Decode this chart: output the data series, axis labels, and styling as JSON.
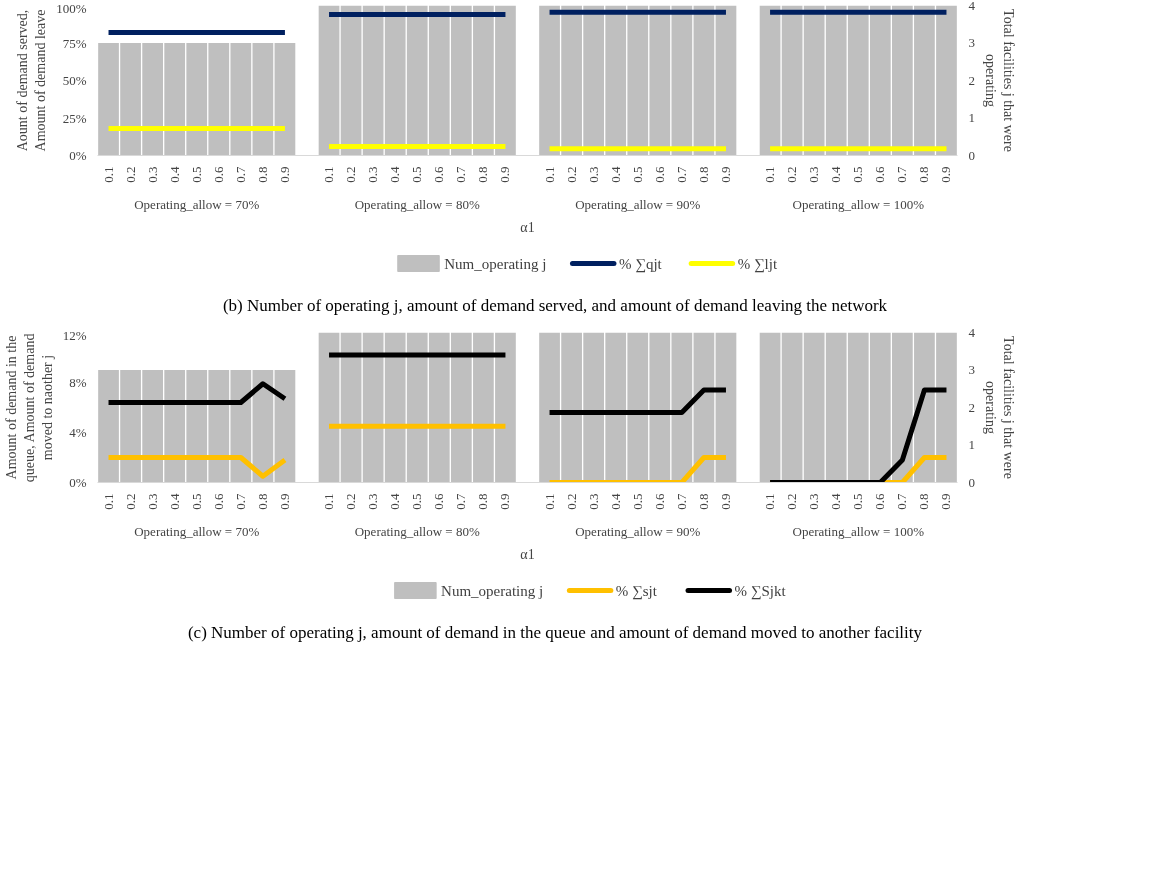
{
  "chart_data": [
    {
      "type": "bar",
      "title": "(b) Number of operating j, amount of demand served, and amount of demand leaving the network",
      "xlabel": "α1",
      "ylabel": "Aount of demand served,\nAmount of demand leave",
      "y2label": "Total facilities j that were\noperating",
      "categories": [
        "0.1",
        "0.2",
        "0.3",
        "0.4",
        "0.5",
        "0.6",
        "0.7",
        "0.8",
        "0.9",
        null,
        "0.1",
        "0.2",
        "0.3",
        "0.4",
        "0.5",
        "0.6",
        "0.7",
        "0.8",
        "0.9",
        null,
        "0.1",
        "0.2",
        "0.3",
        "0.4",
        "0.5",
        "0.6",
        "0.7",
        "0.8",
        "0.9",
        null,
        "0.1",
        "0.2",
        "0.3",
        "0.4",
        "0.5",
        "0.6",
        "0.7",
        "0.8",
        "0.9"
      ],
      "annotations": [
        "Operating_allow = 70%",
        "Operating_allow = 80%",
        "Operating_allow = 90%",
        "Operating_allow = 100%"
      ],
      "ylim": [
        0,
        100
      ],
      "yticks": [
        {
          "value": 0,
          "label": "0%"
        },
        {
          "value": 25,
          "label": "25%"
        },
        {
          "value": 50,
          "label": "50%"
        },
        {
          "value": 75,
          "label": "75%"
        },
        {
          "value": 100,
          "label": "100%"
        }
      ],
      "y2lim": [
        0,
        4
      ],
      "y2ticks": [
        0,
        1,
        2,
        3,
        4
      ],
      "grid": false,
      "legend": "bottom",
      "series": [
        {
          "name": "Num_operating j",
          "axis": "y2",
          "color": "#bfbfbf",
          "values": [
            3,
            3,
            3,
            3,
            3,
            3,
            3,
            3,
            3,
            null,
            4,
            4,
            4,
            4,
            4,
            4,
            4,
            4,
            4,
            null,
            4,
            4,
            4,
            4,
            4,
            4,
            4,
            4,
            4,
            null,
            4,
            4,
            4,
            4,
            4,
            4,
            4,
            4,
            4
          ]
        },
        {
          "name": "% ∑qjt",
          "type": "line",
          "color": "#002060",
          "values": [
            82,
            82,
            82,
            82,
            82,
            82,
            82,
            82,
            82,
            null,
            94,
            94,
            94,
            94,
            94,
            94,
            94,
            94,
            94,
            null,
            95.5,
            95.5,
            95.5,
            95.5,
            95.5,
            95.5,
            95.5,
            95.5,
            95.5,
            null,
            95.5,
            95.5,
            95.5,
            95.5,
            95.5,
            95.5,
            95.5,
            95.5,
            95.5
          ]
        },
        {
          "name": "% ∑ljt",
          "type": "line",
          "color": "#ffff00",
          "values": [
            18,
            18,
            18,
            18,
            18,
            18,
            18,
            18,
            18,
            null,
            6,
            6,
            6,
            6,
            6,
            6,
            6,
            6,
            6,
            null,
            4.5,
            4.5,
            4.5,
            4.5,
            4.5,
            4.5,
            4.5,
            4.5,
            4.5,
            null,
            4.5,
            4.5,
            4.5,
            4.5,
            4.5,
            4.5,
            4.5,
            4.5,
            4.5
          ]
        }
      ]
    },
    {
      "type": "bar",
      "title": "(c) Number of operating j, amount of demand in the queue and amount of demand moved to another facility",
      "xlabel": "α1",
      "ylabel": "Amount of demand in the\nqueue, Amount of demand\nmoved to naother j",
      "y2label": "Total facilities j that were\noperating",
      "categories": [
        "0.1",
        "0.2",
        "0.3",
        "0.4",
        "0.5",
        "0.6",
        "0.7",
        "0.8",
        "0.9",
        null,
        "0.1",
        "0.2",
        "0.3",
        "0.4",
        "0.5",
        "0.6",
        "0.7",
        "0.8",
        "0.9",
        null,
        "0.1",
        "0.2",
        "0.3",
        "0.4",
        "0.5",
        "0.6",
        "0.7",
        "0.8",
        "0.9",
        null,
        "0.1",
        "0.2",
        "0.3",
        "0.4",
        "0.5",
        "0.6",
        "0.7",
        "0.8",
        "0.9"
      ],
      "annotations": [
        "Operating_allow = 70%",
        "Operating_allow = 80%",
        "Operating_allow = 90%",
        "Operating_allow = 100%"
      ],
      "ylim": [
        0,
        12
      ],
      "yticks": [
        {
          "value": 0,
          "label": "0%"
        },
        {
          "value": 4,
          "label": "4%"
        },
        {
          "value": 8,
          "label": "8%"
        },
        {
          "value": 12,
          "label": "12%"
        }
      ],
      "y2lim": [
        0,
        4
      ],
      "y2ticks": [
        0,
        1,
        2,
        3,
        4
      ],
      "grid": false,
      "legend": "bottom",
      "series": [
        {
          "name": "Num_operating j",
          "axis": "y2",
          "color": "#bfbfbf",
          "values": [
            3,
            3,
            3,
            3,
            3,
            3,
            3,
            3,
            3,
            null,
            4,
            4,
            4,
            4,
            4,
            4,
            4,
            4,
            4,
            null,
            4,
            4,
            4,
            4,
            4,
            4,
            4,
            4,
            4,
            null,
            4,
            4,
            4,
            4,
            4,
            4,
            4,
            4,
            4
          ]
        },
        {
          "name": "% ∑sjt",
          "type": "line",
          "color": "#ffc000",
          "values": [
            2,
            2,
            2,
            2,
            2,
            2,
            2,
            0.5,
            1.8,
            null,
            4.5,
            4.5,
            4.5,
            4.5,
            4.5,
            4.5,
            4.5,
            4.5,
            4.5,
            null,
            0,
            0,
            0,
            0,
            0,
            0,
            0,
            2,
            2,
            null,
            0,
            0,
            0,
            0,
            0,
            0,
            0,
            2,
            2
          ]
        },
        {
          "name": "% ∑Sjkt",
          "type": "line",
          "color": "#000000",
          "values": [
            6.4,
            6.4,
            6.4,
            6.4,
            6.4,
            6.4,
            6.4,
            7.9,
            6.7,
            null,
            10.2,
            10.2,
            10.2,
            10.2,
            10.2,
            10.2,
            10.2,
            10.2,
            10.2,
            null,
            5.6,
            5.6,
            5.6,
            5.6,
            5.6,
            5.6,
            5.6,
            7.4,
            7.4,
            null,
            0,
            0,
            0,
            0,
            0,
            0,
            1.8,
            7.4,
            7.4
          ]
        }
      ]
    }
  ]
}
